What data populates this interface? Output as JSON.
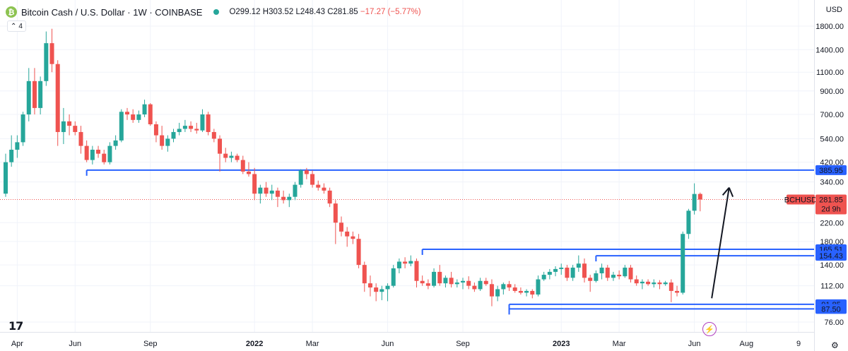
{
  "header": {
    "logo_glyph": "₿",
    "title": "Bitcoin Cash / U.S. Dollar · 1W · COINBASE",
    "ohlc": "O299.12 H303.52 L248.43 C281.85",
    "change": "−17.27 (−5.77%)",
    "indicator_count": "4",
    "currency": "USD"
  },
  "colors": {
    "up": "#26a69a",
    "down": "#ef5350",
    "level_line": "#2962ff",
    "price_tag": "#ef5350"
  },
  "icons": {
    "collapse": "chevron-up-icon",
    "bolt": "lightning-icon",
    "settings": "gear-icon",
    "logo": "tradingview-logo-icon"
  },
  "chart_data": {
    "type": "candlestick",
    "title": "Bitcoin Cash / U.S. Dollar · 1W · COINBASE",
    "y_scale": "log",
    "ylim": [
      70,
      2100
    ],
    "y_ticks": [
      "1800.00",
      "1400.00",
      "1100.00",
      "900.00",
      "700.00",
      "540.00",
      "420.00",
      "340.00",
      "220.00",
      "180.00",
      "140.00",
      "112.00",
      "76.00"
    ],
    "x_ticks": [
      "Apr",
      "Jun",
      "Sep",
      "2022",
      "Mar",
      "Jun",
      "Sep",
      "2023",
      "Mar",
      "Jun",
      "Aug",
      "9"
    ],
    "candles": [
      {
        "o": 300,
        "h": 460,
        "l": 290,
        "c": 420
      },
      {
        "o": 420,
        "h": 560,
        "l": 400,
        "c": 480
      },
      {
        "o": 480,
        "h": 560,
        "l": 440,
        "c": 520
      },
      {
        "o": 520,
        "h": 720,
        "l": 500,
        "c": 700
      },
      {
        "o": 700,
        "h": 1150,
        "l": 650,
        "c": 1000
      },
      {
        "o": 1000,
        "h": 1150,
        "l": 700,
        "c": 750
      },
      {
        "o": 750,
        "h": 1050,
        "l": 700,
        "c": 1000
      },
      {
        "o": 1000,
        "h": 1700,
        "l": 950,
        "c": 1500
      },
      {
        "o": 1500,
        "h": 1750,
        "l": 1100,
        "c": 1200
      },
      {
        "o": 1200,
        "h": 1250,
        "l": 500,
        "c": 580
      },
      {
        "o": 580,
        "h": 750,
        "l": 510,
        "c": 650
      },
      {
        "o": 650,
        "h": 700,
        "l": 560,
        "c": 620
      },
      {
        "o": 620,
        "h": 650,
        "l": 560,
        "c": 580
      },
      {
        "o": 580,
        "h": 620,
        "l": 460,
        "c": 500
      },
      {
        "o": 500,
        "h": 530,
        "l": 420,
        "c": 430
      },
      {
        "o": 430,
        "h": 500,
        "l": 410,
        "c": 480
      },
      {
        "o": 480,
        "h": 500,
        "l": 440,
        "c": 460
      },
      {
        "o": 460,
        "h": 480,
        "l": 410,
        "c": 420
      },
      {
        "o": 420,
        "h": 520,
        "l": 410,
        "c": 500
      },
      {
        "o": 500,
        "h": 560,
        "l": 480,
        "c": 530
      },
      {
        "o": 530,
        "h": 740,
        "l": 520,
        "c": 720
      },
      {
        "o": 720,
        "h": 750,
        "l": 660,
        "c": 700
      },
      {
        "o": 700,
        "h": 740,
        "l": 640,
        "c": 660
      },
      {
        "o": 660,
        "h": 730,
        "l": 640,
        "c": 700
      },
      {
        "o": 700,
        "h": 820,
        "l": 680,
        "c": 780
      },
      {
        "o": 780,
        "h": 790,
        "l": 620,
        "c": 630
      },
      {
        "o": 630,
        "h": 650,
        "l": 520,
        "c": 560
      },
      {
        "o": 560,
        "h": 620,
        "l": 480,
        "c": 500
      },
      {
        "o": 500,
        "h": 560,
        "l": 470,
        "c": 540
      },
      {
        "o": 540,
        "h": 600,
        "l": 520,
        "c": 580
      },
      {
        "o": 580,
        "h": 640,
        "l": 560,
        "c": 600
      },
      {
        "o": 600,
        "h": 660,
        "l": 580,
        "c": 620
      },
      {
        "o": 620,
        "h": 650,
        "l": 580,
        "c": 600
      },
      {
        "o": 600,
        "h": 640,
        "l": 570,
        "c": 590
      },
      {
        "o": 590,
        "h": 740,
        "l": 580,
        "c": 700
      },
      {
        "o": 700,
        "h": 720,
        "l": 560,
        "c": 580
      },
      {
        "o": 580,
        "h": 600,
        "l": 520,
        "c": 540
      },
      {
        "o": 540,
        "h": 560,
        "l": 380,
        "c": 460
      },
      {
        "o": 460,
        "h": 490,
        "l": 420,
        "c": 440
      },
      {
        "o": 440,
        "h": 470,
        "l": 420,
        "c": 450
      },
      {
        "o": 450,
        "h": 460,
        "l": 420,
        "c": 430
      },
      {
        "o": 430,
        "h": 450,
        "l": 370,
        "c": 380
      },
      {
        "o": 380,
        "h": 420,
        "l": 360,
        "c": 370
      },
      {
        "o": 370,
        "h": 395,
        "l": 280,
        "c": 300
      },
      {
        "o": 300,
        "h": 330,
        "l": 270,
        "c": 320
      },
      {
        "o": 320,
        "h": 340,
        "l": 290,
        "c": 300
      },
      {
        "o": 300,
        "h": 330,
        "l": 280,
        "c": 310
      },
      {
        "o": 310,
        "h": 320,
        "l": 260,
        "c": 290
      },
      {
        "o": 290,
        "h": 310,
        "l": 270,
        "c": 280
      },
      {
        "o": 280,
        "h": 300,
        "l": 260,
        "c": 290
      },
      {
        "o": 290,
        "h": 340,
        "l": 280,
        "c": 330
      },
      {
        "o": 330,
        "h": 390,
        "l": 320,
        "c": 385
      },
      {
        "o": 385,
        "h": 395,
        "l": 350,
        "c": 370
      },
      {
        "o": 370,
        "h": 385,
        "l": 320,
        "c": 330
      },
      {
        "o": 330,
        "h": 345,
        "l": 310,
        "c": 320
      },
      {
        "o": 320,
        "h": 335,
        "l": 300,
        "c": 310
      },
      {
        "o": 310,
        "h": 320,
        "l": 260,
        "c": 270
      },
      {
        "o": 270,
        "h": 280,
        "l": 175,
        "c": 220
      },
      {
        "o": 220,
        "h": 235,
        "l": 190,
        "c": 200
      },
      {
        "o": 200,
        "h": 210,
        "l": 170,
        "c": 190
      },
      {
        "o": 190,
        "h": 200,
        "l": 175,
        "c": 185
      },
      {
        "o": 185,
        "h": 195,
        "l": 135,
        "c": 140
      },
      {
        "o": 140,
        "h": 145,
        "l": 105,
        "c": 115
      },
      {
        "o": 115,
        "h": 125,
        "l": 100,
        "c": 110
      },
      {
        "o": 110,
        "h": 115,
        "l": 95,
        "c": 105
      },
      {
        "o": 105,
        "h": 112,
        "l": 96,
        "c": 108
      },
      {
        "o": 108,
        "h": 115,
        "l": 95,
        "c": 112
      },
      {
        "o": 112,
        "h": 140,
        "l": 110,
        "c": 135
      },
      {
        "o": 135,
        "h": 150,
        "l": 128,
        "c": 145
      },
      {
        "o": 145,
        "h": 152,
        "l": 135,
        "c": 142
      },
      {
        "o": 142,
        "h": 155,
        "l": 138,
        "c": 146
      },
      {
        "o": 146,
        "h": 150,
        "l": 110,
        "c": 118
      },
      {
        "o": 118,
        "h": 125,
        "l": 112,
        "c": 115
      },
      {
        "o": 115,
        "h": 120,
        "l": 108,
        "c": 112
      },
      {
        "o": 112,
        "h": 135,
        "l": 110,
        "c": 130
      },
      {
        "o": 130,
        "h": 140,
        "l": 112,
        "c": 115
      },
      {
        "o": 115,
        "h": 125,
        "l": 110,
        "c": 122
      },
      {
        "o": 122,
        "h": 130,
        "l": 110,
        "c": 114
      },
      {
        "o": 114,
        "h": 120,
        "l": 110,
        "c": 116
      },
      {
        "o": 116,
        "h": 122,
        "l": 108,
        "c": 118
      },
      {
        "o": 118,
        "h": 124,
        "l": 108,
        "c": 112
      },
      {
        "o": 112,
        "h": 116,
        "l": 105,
        "c": 108
      },
      {
        "o": 108,
        "h": 122,
        "l": 106,
        "c": 118
      },
      {
        "o": 118,
        "h": 122,
        "l": 112,
        "c": 114
      },
      {
        "o": 114,
        "h": 120,
        "l": 90,
        "c": 100
      },
      {
        "o": 100,
        "h": 112,
        "l": 95,
        "c": 108
      },
      {
        "o": 108,
        "h": 116,
        "l": 102,
        "c": 114
      },
      {
        "o": 114,
        "h": 118,
        "l": 106,
        "c": 110
      },
      {
        "o": 110,
        "h": 114,
        "l": 104,
        "c": 106
      },
      {
        "o": 106,
        "h": 110,
        "l": 102,
        "c": 104
      },
      {
        "o": 104,
        "h": 108,
        "l": 100,
        "c": 106
      },
      {
        "o": 106,
        "h": 108,
        "l": 98,
        "c": 102
      },
      {
        "o": 102,
        "h": 125,
        "l": 100,
        "c": 120
      },
      {
        "o": 120,
        "h": 130,
        "l": 118,
        "c": 126
      },
      {
        "o": 126,
        "h": 134,
        "l": 120,
        "c": 130
      },
      {
        "o": 130,
        "h": 138,
        "l": 124,
        "c": 134
      },
      {
        "o": 134,
        "h": 142,
        "l": 126,
        "c": 136
      },
      {
        "o": 136,
        "h": 140,
        "l": 118,
        "c": 122
      },
      {
        "o": 122,
        "h": 140,
        "l": 118,
        "c": 136
      },
      {
        "o": 136,
        "h": 155,
        "l": 130,
        "c": 142
      },
      {
        "o": 142,
        "h": 150,
        "l": 116,
        "c": 122
      },
      {
        "o": 122,
        "h": 126,
        "l": 105,
        "c": 118
      },
      {
        "o": 118,
        "h": 132,
        "l": 116,
        "c": 128
      },
      {
        "o": 128,
        "h": 142,
        "l": 120,
        "c": 136
      },
      {
        "o": 136,
        "h": 140,
        "l": 118,
        "c": 122
      },
      {
        "o": 122,
        "h": 130,
        "l": 118,
        "c": 126
      },
      {
        "o": 126,
        "h": 132,
        "l": 120,
        "c": 124
      },
      {
        "o": 124,
        "h": 140,
        "l": 122,
        "c": 136
      },
      {
        "o": 136,
        "h": 140,
        "l": 116,
        "c": 120
      },
      {
        "o": 120,
        "h": 125,
        "l": 112,
        "c": 115
      },
      {
        "o": 115,
        "h": 120,
        "l": 108,
        "c": 117
      },
      {
        "o": 117,
        "h": 120,
        "l": 112,
        "c": 114
      },
      {
        "o": 114,
        "h": 120,
        "l": 110,
        "c": 116
      },
      {
        "o": 116,
        "h": 119,
        "l": 108,
        "c": 114
      },
      {
        "o": 114,
        "h": 118,
        "l": 112,
        "c": 116
      },
      {
        "o": 116,
        "h": 120,
        "l": 94,
        "c": 106
      },
      {
        "o": 106,
        "h": 112,
        "l": 100,
        "c": 104
      },
      {
        "o": 104,
        "h": 200,
        "l": 102,
        "c": 195
      },
      {
        "o": 195,
        "h": 255,
        "l": 185,
        "c": 250
      },
      {
        "o": 250,
        "h": 335,
        "l": 240,
        "c": 299
      },
      {
        "o": 299.12,
        "h": 303.52,
        "l": 248.43,
        "c": 281.85
      }
    ],
    "levels": [
      385.95,
      165.51,
      154.43,
      91.85,
      87.5
    ],
    "level_labels": [
      "385.95",
      "165.51",
      "154.43",
      "91.85",
      "87.50"
    ],
    "last_price": "281.85",
    "last_symbol": "BCHUSD",
    "countdown": "2d 9h",
    "forecast_arrow": {
      "from": {
        "week": 122,
        "price": 98
      },
      "to": {
        "week": 125,
        "price": 320
      }
    }
  }
}
